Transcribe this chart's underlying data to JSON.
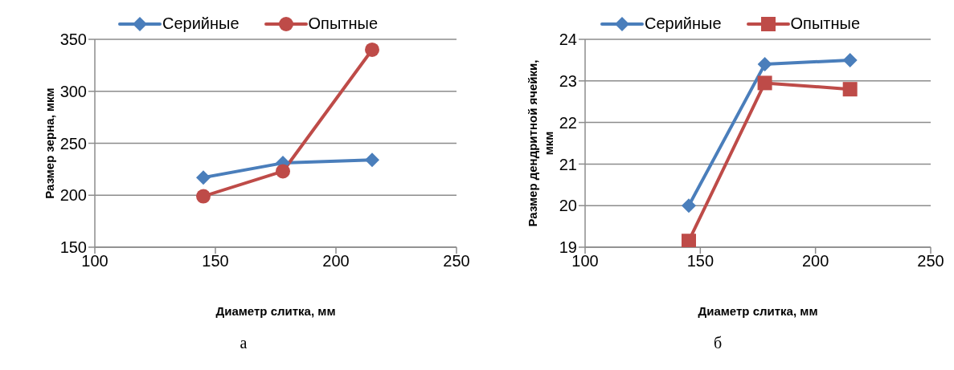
{
  "chart_data": [
    {
      "type": "line",
      "xlabel": "Диаметр слитка, мм",
      "ylabel": "Размер зерна, мкм",
      "x": [
        145,
        178,
        215
      ],
      "xlim": [
        100,
        250
      ],
      "xticks": [
        100,
        150,
        200,
        250
      ],
      "ylim": [
        150,
        350
      ],
      "yticks": [
        150,
        200,
        250,
        300,
        350
      ],
      "grid": "y",
      "legend": "top",
      "line_style": "solid",
      "annotations": [
        "а"
      ],
      "series": [
        {
          "name": "Серийные",
          "color": "#4a7ebb",
          "marker": "diamond",
          "values": [
            217,
            231,
            234
          ]
        },
        {
          "name": "Опытные",
          "color": "#be4b48",
          "marker": "circle",
          "values": [
            199,
            223,
            340
          ]
        }
      ]
    },
    {
      "type": "line",
      "xlabel": "Диаметр слитка, мм",
      "ylabel": "Размер дендритной ячейки, мкм",
      "x": [
        145,
        178,
        215
      ],
      "xlim": [
        100,
        250
      ],
      "xticks": [
        100,
        150,
        200,
        250
      ],
      "ylim": [
        19,
        24
      ],
      "yticks": [
        19,
        20,
        21,
        22,
        23,
        24
      ],
      "grid": "y",
      "legend": "top",
      "line_style": "solid",
      "annotations": [
        "б"
      ],
      "series": [
        {
          "name": "Серийные",
          "color": "#4a7ebb",
          "marker": "diamond",
          "values": [
            20.0,
            23.4,
            23.5
          ]
        },
        {
          "name": "Опытные",
          "color": "#be4b48",
          "marker": "square",
          "values": [
            19.15,
            22.95,
            22.8
          ]
        }
      ]
    }
  ]
}
